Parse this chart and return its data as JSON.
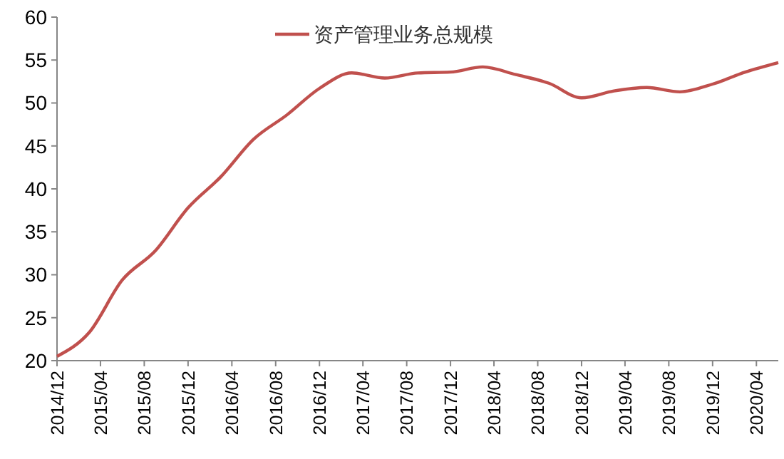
{
  "chart_data": {
    "type": "line",
    "legend": "top",
    "grid": false,
    "marker": "none",
    "line_style": "solid",
    "x": [
      "2014-12",
      "2015-03",
      "2015-06",
      "2015-09",
      "2015-12",
      "2016-03",
      "2016-06",
      "2016-09",
      "2016-12",
      "2017-03",
      "2017-06",
      "2017-09",
      "2017-12",
      "2018-03",
      "2018-06",
      "2018-09",
      "2018-12",
      "2019-03",
      "2019-06",
      "2019-09",
      "2019-12",
      "2020-03",
      "2020-06"
    ],
    "series": [
      {
        "name": "资产管理业务总规模",
        "color": "#c0504d",
        "values": [
          20.5,
          23.3,
          29.4,
          32.8,
          37.8,
          41.4,
          45.8,
          48.6,
          51.7,
          53.5,
          52.9,
          53.5,
          53.6,
          54.2,
          53.3,
          52.3,
          50.6,
          51.4,
          51.8,
          51.3,
          52.2,
          53.6,
          54.7
        ]
      }
    ],
    "xlim": [
      "2014-12",
      "2020-06"
    ],
    "xticks": [
      {
        "value": "2014-12",
        "label": "2014/12"
      },
      {
        "value": "2015-04",
        "label": "2015/04"
      },
      {
        "value": "2015-08",
        "label": "2015/08"
      },
      {
        "value": "2015-12",
        "label": "2015/12"
      },
      {
        "value": "2016-04",
        "label": "2016/04"
      },
      {
        "value": "2016-08",
        "label": "2016/08"
      },
      {
        "value": "2016-12",
        "label": "2016/12"
      },
      {
        "value": "2017-04",
        "label": "2017/04"
      },
      {
        "value": "2017-08",
        "label": "2017/08"
      },
      {
        "value": "2017-12",
        "label": "2017/12"
      },
      {
        "value": "2018-04",
        "label": "2018/04"
      },
      {
        "value": "2018-08",
        "label": "2018/08"
      },
      {
        "value": "2018-12",
        "label": "2018/12"
      },
      {
        "value": "2019-04",
        "label": "2019/04"
      },
      {
        "value": "2019-08",
        "label": "2019/08"
      },
      {
        "value": "2019-12",
        "label": "2019/12"
      },
      {
        "value": "2020-04",
        "label": "2020/04"
      }
    ],
    "ylim": [
      20,
      60
    ],
    "yticks": [
      20,
      25,
      30,
      35,
      40,
      45,
      50,
      55,
      60
    ]
  }
}
